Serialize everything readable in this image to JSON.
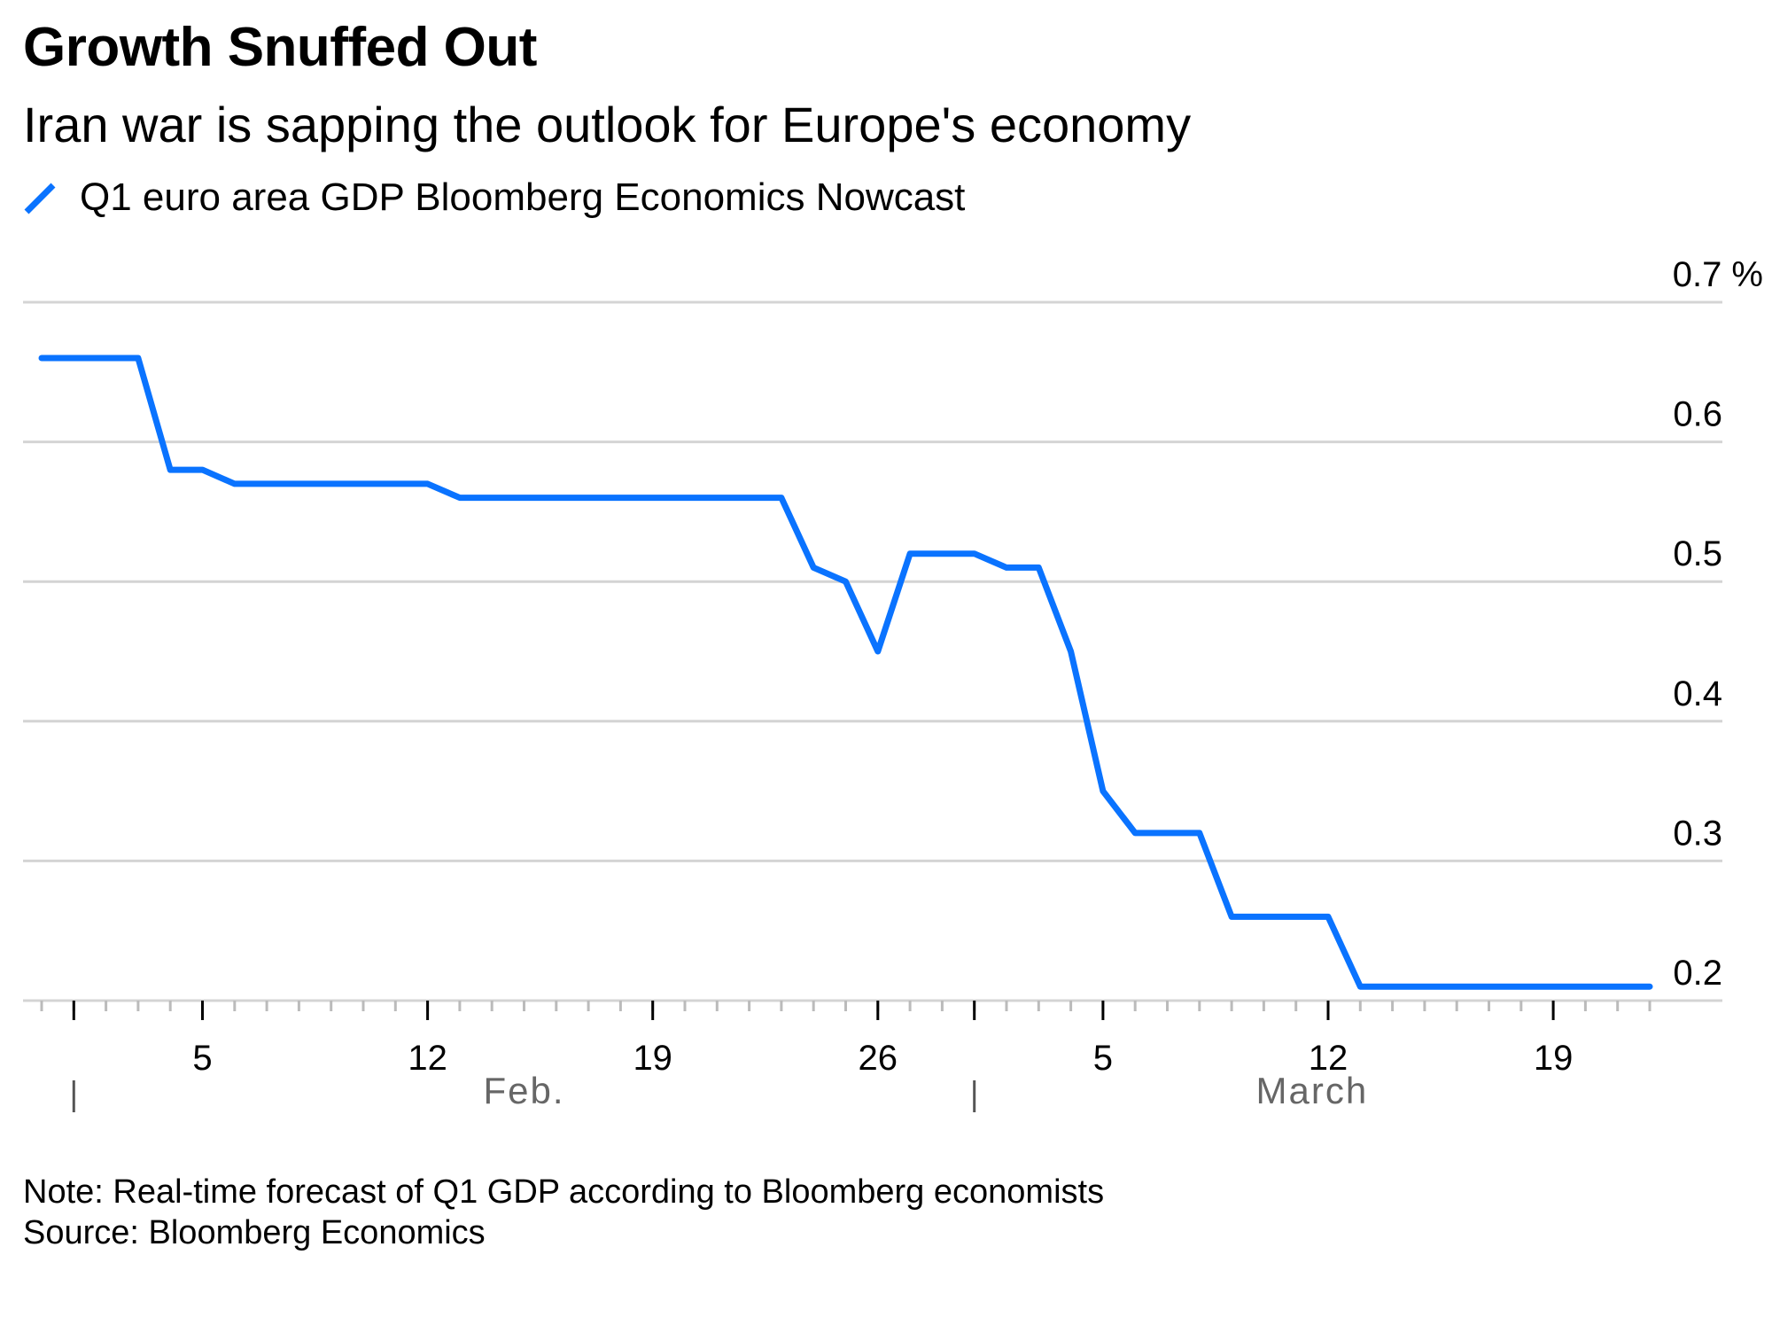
{
  "title": "Growth Snuffed Out",
  "subtitle": "Iran war is sapping the outlook for Europe's economy",
  "note": "Note: Real-time forecast of Q1 GDP according to Bloomberg economists",
  "source": "Source: Bloomberg Economics",
  "chart_data": {
    "type": "line",
    "ylabel": "",
    "xlabel": "",
    "y_unit": "%",
    "ylim": [
      0.2,
      0.7
    ],
    "yticks": [
      0.2,
      0.3,
      0.4,
      0.5,
      0.6,
      0.7
    ],
    "ytick_labels": [
      "0.2",
      "0.3",
      "0.4",
      "0.5",
      "0.6",
      "0.7 %"
    ],
    "grid": true,
    "legend_placement": "top-left",
    "xlim": [
      "2026-01-31",
      "2026-03-22"
    ],
    "xtick_labels": [
      {
        "date": "2026-02-05",
        "label": "5"
      },
      {
        "date": "2026-02-12",
        "label": "12"
      },
      {
        "date": "2026-02-19",
        "label": "19"
      },
      {
        "date": "2026-02-26",
        "label": "26"
      },
      {
        "date": "2026-03-05",
        "label": "5"
      },
      {
        "date": "2026-03-12",
        "label": "12"
      },
      {
        "date": "2026-03-19",
        "label": "19"
      }
    ],
    "month_labels": [
      {
        "start": "2026-02-01",
        "end": "2026-03-01",
        "label": "Feb."
      },
      {
        "start": "2026-03-01",
        "end": "2026-03-22",
        "label": "March"
      }
    ],
    "series": [
      {
        "name": "Q1 euro area GDP Bloomberg Economics Nowcast",
        "color": "#0a73ff",
        "x": [
          "2026-01-31",
          "2026-02-03",
          "2026-02-04",
          "2026-02-05",
          "2026-02-06",
          "2026-02-12",
          "2026-02-13",
          "2026-02-23",
          "2026-02-24",
          "2026-02-25",
          "2026-02-26",
          "2026-02-27",
          "2026-03-01",
          "2026-03-02",
          "2026-03-03",
          "2026-03-04",
          "2026-03-05",
          "2026-03-06",
          "2026-03-08",
          "2026-03-09",
          "2026-03-12",
          "2026-03-13",
          "2026-03-22"
        ],
        "y": [
          0.66,
          0.66,
          0.58,
          0.58,
          0.57,
          0.57,
          0.56,
          0.56,
          0.51,
          0.5,
          0.45,
          0.52,
          0.52,
          0.51,
          0.51,
          0.45,
          0.35,
          0.32,
          0.32,
          0.26,
          0.26,
          0.21,
          0.21
        ]
      }
    ]
  }
}
